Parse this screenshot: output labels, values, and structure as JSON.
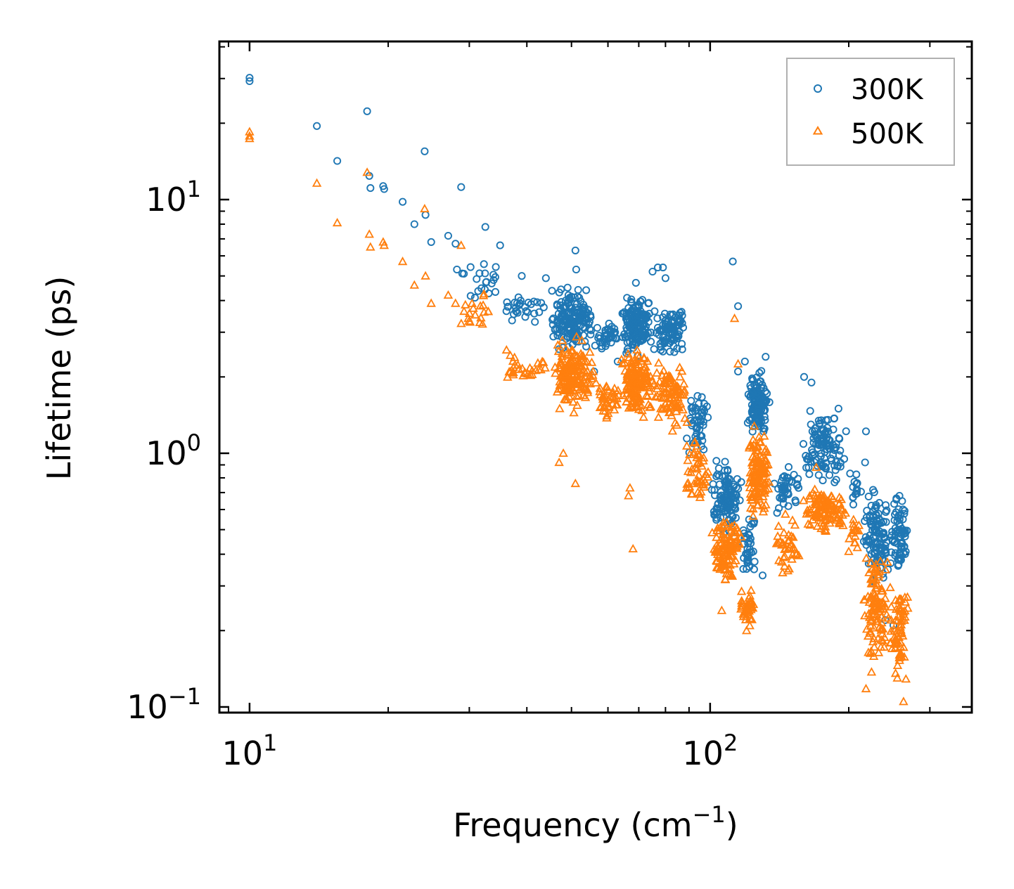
{
  "chart_data": {
    "type": "scatter",
    "xscale": "log",
    "yscale": "log",
    "xlim": [
      8.6,
      370
    ],
    "ylim": [
      0.095,
      42
    ],
    "xlabel_base": "Frequency (cm",
    "xlabel_sup": "−1",
    "xlabel_end": ")",
    "ylabel": "Lifetime (ps)",
    "x_major_ticks": [
      {
        "value": 10,
        "base": "10",
        "exp": "1"
      },
      {
        "value": 100,
        "base": "10",
        "exp": "2"
      }
    ],
    "y_major_ticks": [
      {
        "value": 0.1,
        "base": "10",
        "exp": "−1"
      },
      {
        "value": 1,
        "base": "10",
        "exp": "0"
      },
      {
        "value": 10,
        "base": "10",
        "exp": "1"
      }
    ],
    "legend": {
      "position": "top-right"
    },
    "series": [
      {
        "name": "300K",
        "marker": "circle",
        "color": "#1f77b4",
        "anchors": [
          {
            "x": 10,
            "y": 30.2
          },
          {
            "x": 10,
            "y": 29.3
          },
          {
            "x": 14,
            "y": 19.5
          },
          {
            "x": 15.5,
            "y": 14.2
          },
          {
            "x": 18,
            "y": 22.3
          },
          {
            "x": 18.2,
            "y": 12.4
          },
          {
            "x": 18.3,
            "y": 11.1
          },
          {
            "x": 19.5,
            "y": 11.3
          },
          {
            "x": 19.6,
            "y": 11.0
          },
          {
            "x": 21.5,
            "y": 9.8
          },
          {
            "x": 22.8,
            "y": 8.0
          },
          {
            "x": 24,
            "y": 15.5
          },
          {
            "x": 24.1,
            "y": 8.7
          },
          {
            "x": 24.8,
            "y": 6.8
          },
          {
            "x": 27,
            "y": 7.2
          },
          {
            "x": 28,
            "y": 6.7
          },
          {
            "x": 28.2,
            "y": 5.3
          },
          {
            "x": 28.8,
            "y": 11.2
          },
          {
            "x": 29.2,
            "y": 5.1
          },
          {
            "x": 32.5,
            "y": 7.8
          },
          {
            "x": 35,
            "y": 6.6
          },
          {
            "x": 39,
            "y": 5.0
          },
          {
            "x": 44,
            "y": 4.9
          },
          {
            "x": 51,
            "y": 6.3
          },
          {
            "x": 51.2,
            "y": 5.3
          },
          {
            "x": 56,
            "y": 2.1
          },
          {
            "x": 63,
            "y": 2.3
          },
          {
            "x": 66,
            "y": 4.1
          },
          {
            "x": 69,
            "y": 4.7
          },
          {
            "x": 75,
            "y": 5.2
          },
          {
            "x": 77,
            "y": 5.4
          },
          {
            "x": 79,
            "y": 5.4
          },
          {
            "x": 80,
            "y": 4.9
          },
          {
            "x": 112,
            "y": 5.7
          },
          {
            "x": 115,
            "y": 3.8
          },
          {
            "x": 115,
            "y": 2.1
          },
          {
            "x": 119,
            "y": 2.3
          },
          {
            "x": 132,
            "y": 2.4
          },
          {
            "x": 160,
            "y": 2.0
          },
          {
            "x": 166,
            "y": 1.9
          },
          {
            "x": 190,
            "y": 1.5
          },
          {
            "x": 218,
            "y": 1.22
          },
          {
            "x": 217,
            "y": 0.92
          },
          {
            "x": 258,
            "y": 0.55
          },
          {
            "x": 265,
            "y": 0.47
          },
          {
            "x": 266,
            "y": 0.41
          },
          {
            "x": 240,
            "y": 0.22
          },
          {
            "x": 250,
            "y": 0.21
          },
          {
            "x": 130,
            "y": 0.33
          },
          {
            "x": 120,
            "y": 0.35
          }
        ],
        "clusters": [
          {
            "x": [
              28.5,
              36
            ],
            "y": [
              3.8,
              6.0
            ],
            "n": 20
          },
          {
            "x": [
              35,
              45
            ],
            "y": [
              3.2,
              4.4
            ],
            "n": 30
          },
          {
            "x": [
              45,
              56
            ],
            "y": [
              2.4,
              4.8
            ],
            "n": 170
          },
          {
            "x": [
              56,
              64
            ],
            "y": [
              2.5,
              3.4
            ],
            "n": 40
          },
          {
            "x": [
              64,
              75
            ],
            "y": [
              2.3,
              4.4
            ],
            "n": 160
          },
          {
            "x": [
              75,
              90
            ],
            "y": [
              2.2,
              4.2
            ],
            "n": 90
          },
          {
            "x": [
              88,
              100
            ],
            "y": [
              0.85,
              2.0
            ],
            "n": 50
          },
          {
            "x": [
              100,
              118
            ],
            "y": [
              0.45,
              1.0
            ],
            "n": 110
          },
          {
            "x": [
              116,
              126
            ],
            "y": [
              0.32,
              0.6
            ],
            "n": 40
          },
          {
            "x": [
              120,
              135
            ],
            "y": [
              1.1,
              2.2
            ],
            "n": 130
          },
          {
            "x": [
              137,
              158
            ],
            "y": [
              0.5,
              1.0
            ],
            "n": 40
          },
          {
            "x": [
              158,
              200
            ],
            "y": [
              0.7,
              1.6
            ],
            "n": 110
          },
          {
            "x": [
              200,
              214
            ],
            "y": [
              0.6,
              0.9
            ],
            "n": 15
          },
          {
            "x": [
              214,
              245
            ],
            "y": [
              0.28,
              0.8
            ],
            "n": 110
          },
          {
            "x": [
              245,
              270
            ],
            "y": [
              0.3,
              0.75
            ],
            "n": 70
          }
        ]
      },
      {
        "name": "500K",
        "marker": "triangle",
        "color": "#ff7f0e",
        "anchors": [
          {
            "x": 10,
            "y": 18.5
          },
          {
            "x": 10,
            "y": 17.8
          },
          {
            "x": 10,
            "y": 17.4
          },
          {
            "x": 14,
            "y": 11.6
          },
          {
            "x": 15.5,
            "y": 8.1
          },
          {
            "x": 18,
            "y": 12.8
          },
          {
            "x": 18.2,
            "y": 7.3
          },
          {
            "x": 18.3,
            "y": 6.5
          },
          {
            "x": 19.5,
            "y": 6.8
          },
          {
            "x": 19.6,
            "y": 6.6
          },
          {
            "x": 21.5,
            "y": 5.7
          },
          {
            "x": 22.8,
            "y": 4.6
          },
          {
            "x": 24,
            "y": 9.2
          },
          {
            "x": 24.1,
            "y": 5.0
          },
          {
            "x": 24.8,
            "y": 3.9
          },
          {
            "x": 27,
            "y": 4.2
          },
          {
            "x": 28,
            "y": 3.9
          },
          {
            "x": 28.8,
            "y": 6.6
          },
          {
            "x": 51,
            "y": 0.76
          },
          {
            "x": 47,
            "y": 0.92
          },
          {
            "x": 48,
            "y": 1.0
          },
          {
            "x": 67,
            "y": 0.73
          },
          {
            "x": 66.5,
            "y": 0.68
          },
          {
            "x": 68,
            "y": 0.42
          },
          {
            "x": 113,
            "y": 3.4
          },
          {
            "x": 115,
            "y": 2.25
          },
          {
            "x": 106,
            "y": 0.24
          },
          {
            "x": 120,
            "y": 0.2
          },
          {
            "x": 263,
            "y": 0.105
          },
          {
            "x": 218,
            "y": 0.118
          },
          {
            "x": 255,
            "y": 0.13
          },
          {
            "x": 200,
            "y": 0.41
          },
          {
            "x": 170,
            "y": 0.88
          }
        ],
        "clusters": [
          {
            "x": [
              28.5,
              36
            ],
            "y": [
              3.0,
              4.6
            ],
            "n": 20
          },
          {
            "x": [
              35,
              45
            ],
            "y": [
              1.8,
              2.6
            ],
            "n": 30
          },
          {
            "x": [
              45,
              56
            ],
            "y": [
              1.4,
              3.0
            ],
            "n": 170
          },
          {
            "x": [
              56,
              64
            ],
            "y": [
              1.3,
              2.0
            ],
            "n": 40
          },
          {
            "x": [
              64,
              75
            ],
            "y": [
              1.3,
              2.8
            ],
            "n": 160
          },
          {
            "x": [
              75,
              90
            ],
            "y": [
              1.1,
              2.6
            ],
            "n": 90
          },
          {
            "x": [
              88,
              100
            ],
            "y": [
              0.55,
              1.3
            ],
            "n": 50
          },
          {
            "x": [
              100,
              118
            ],
            "y": [
              0.28,
              0.62
            ],
            "n": 110
          },
          {
            "x": [
              116,
              126
            ],
            "y": [
              0.2,
              0.32
            ],
            "n": 40
          },
          {
            "x": [
              120,
              135
            ],
            "y": [
              0.5,
              1.4
            ],
            "n": 130
          },
          {
            "x": [
              137,
              158
            ],
            "y": [
              0.3,
              0.6
            ],
            "n": 40
          },
          {
            "x": [
              158,
              200
            ],
            "y": [
              0.45,
              0.8
            ],
            "n": 110
          },
          {
            "x": [
              200,
              214
            ],
            "y": [
              0.4,
              0.6
            ],
            "n": 15
          },
          {
            "x": [
              214,
              245
            ],
            "y": [
              0.12,
              0.5
            ],
            "n": 110
          },
          {
            "x": [
              245,
              270
            ],
            "y": [
              0.12,
              0.35
            ],
            "n": 70
          }
        ]
      }
    ]
  }
}
